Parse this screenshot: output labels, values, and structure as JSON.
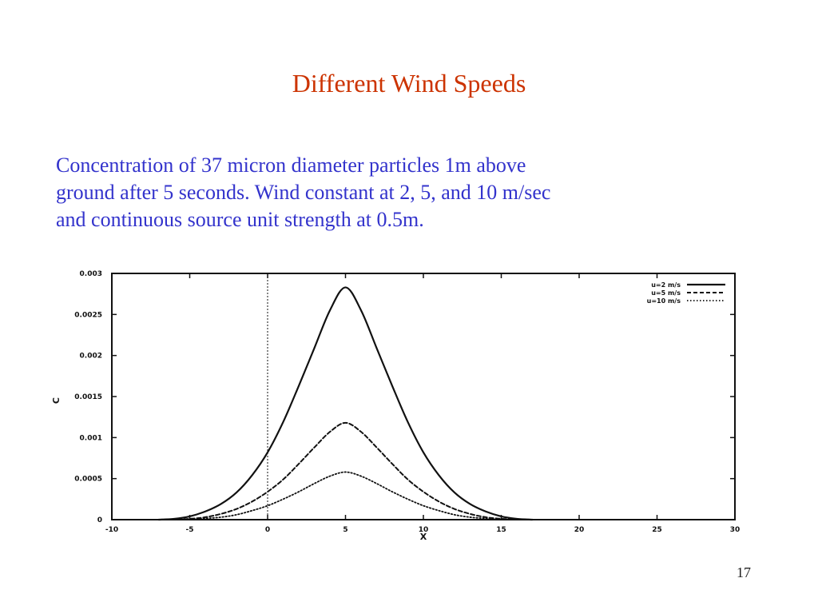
{
  "slide": {
    "title": "Different Wind Speeds",
    "body_lines": [
      "Concentration of 37 micron diameter particles 1m above",
      "ground after 5 seconds.  Wind constant at 2, 5, and 10 m/sec",
      "and continuous source unit strength at 0.5m."
    ],
    "page_number": "17"
  },
  "colors": {
    "title": "#cc3300",
    "body_text": "#3333cc",
    "plot_ink": "#111111"
  },
  "chart_data": {
    "type": "line",
    "title": "",
    "xlabel": "X",
    "ylabel": "C",
    "xlim": [
      -10,
      30
    ],
    "ylim": [
      0,
      0.003
    ],
    "x_ticks": [
      -10,
      -5,
      0,
      5,
      10,
      15,
      20,
      25,
      30
    ],
    "x_tick_labels": [
      "-10",
      "-5",
      "0",
      "5",
      "10",
      "15",
      "20",
      "25",
      "30"
    ],
    "y_ticks": [
      0,
      0.0005,
      0.001,
      0.0015,
      0.002,
      0.0025,
      0.003
    ],
    "y_tick_labels": [
      "0",
      "0.0005",
      "0.001",
      "0.0015",
      "0.002",
      "0.0025",
      "0.003"
    ],
    "grid": false,
    "legend_position": "top-right",
    "vertical_reference_line_x": 0,
    "series": [
      {
        "name": "u=2 m/s",
        "style": "solid",
        "x": [
          -7,
          -6,
          -5,
          -4,
          -3,
          -2,
          -1,
          0,
          1,
          2,
          3,
          4,
          5,
          6,
          7,
          8,
          9,
          10,
          11,
          12,
          13,
          14,
          15,
          16,
          17
        ],
        "y": [
          0,
          1e-05,
          4e-05,
          0.0001,
          0.00019,
          0.00033,
          0.00054,
          0.00082,
          0.00119,
          0.00163,
          0.00209,
          0.00255,
          0.00283,
          0.00255,
          0.00209,
          0.00163,
          0.00119,
          0.00082,
          0.00054,
          0.00033,
          0.00019,
          0.0001,
          4e-05,
          1e-05,
          0
        ]
      },
      {
        "name": "u=5 m/s",
        "style": "dashed",
        "x": [
          -7,
          -6,
          -5,
          -4,
          -3,
          -2,
          -1,
          0,
          1,
          2,
          3,
          4,
          5,
          6,
          7,
          8,
          9,
          10,
          11,
          12,
          13,
          14,
          15,
          16,
          17
        ],
        "y": [
          0,
          3e-06,
          1e-05,
          3e-05,
          7e-05,
          0.00013,
          0.00022,
          0.00034,
          0.00049,
          0.00068,
          0.00088,
          0.00107,
          0.00118,
          0.00107,
          0.00088,
          0.00068,
          0.00049,
          0.00034,
          0.00022,
          0.00013,
          7e-05,
          3e-05,
          1e-05,
          3e-06,
          0
        ]
      },
      {
        "name": "u=10 m/s",
        "style": "dotted",
        "x": [
          -7,
          -6,
          -5,
          -4,
          -3,
          -2,
          -1,
          0,
          1,
          2,
          3,
          4,
          5,
          6,
          7,
          8,
          9,
          10,
          11,
          12,
          13,
          14,
          15,
          16,
          17
        ],
        "y": [
          0,
          1e-06,
          5e-06,
          1.5e-05,
          3e-05,
          6e-05,
          0.00011,
          0.00017,
          0.00025,
          0.00034,
          0.00044,
          0.00053,
          0.00058,
          0.00053,
          0.00044,
          0.00034,
          0.00025,
          0.00017,
          0.00011,
          6e-05,
          3e-05,
          1.5e-05,
          5e-06,
          1e-06,
          0
        ]
      }
    ]
  }
}
